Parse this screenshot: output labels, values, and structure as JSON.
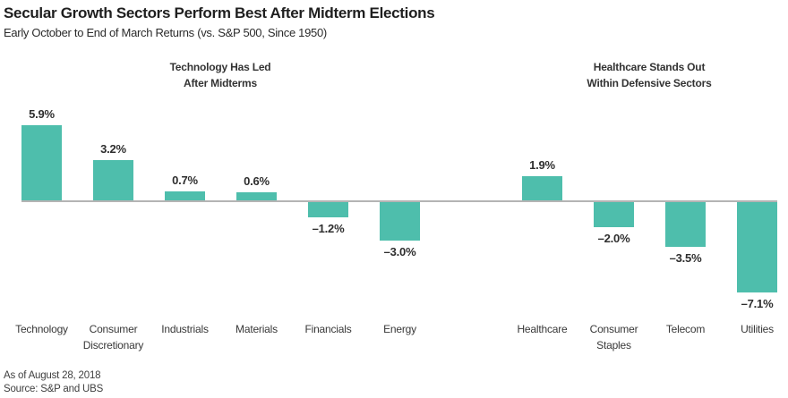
{
  "title": "Secular Growth Sectors Perform Best After Midterm Elections",
  "subtitle": "Early October to End of March Returns (vs. S&P 500, Since 1950)",
  "annotations": [
    {
      "lines": [
        "Technology Has Led",
        "After Midterms"
      ]
    },
    {
      "lines": [
        "Healthcare Stands Out",
        "Within Defensive Sectors"
      ]
    }
  ],
  "chart_data": {
    "type": "bar",
    "categories": [
      "Technology",
      "Consumer Discretionary",
      "Industrials",
      "Materials",
      "Financials",
      "Energy",
      "Healthcare",
      "Consumer Staples",
      "Telecom",
      "Utilities"
    ],
    "values": [
      5.9,
      3.2,
      0.7,
      0.6,
      -1.2,
      -3.0,
      1.9,
      -2.0,
      -3.5,
      -7.1
    ],
    "value_labels": [
      "5.9%",
      "3.2%",
      "0.7%",
      "0.6%",
      "–1.2%",
      "–3.0%",
      "1.9%",
      "–2.0%",
      "–3.5%",
      "–7.1%"
    ],
    "title": "Secular Growth Sectors Perform Best After Midterm Elections",
    "xlabel": "",
    "ylabel": "",
    "ylim": [
      -8,
      7
    ],
    "grid": false,
    "legend": false,
    "group_split_index": 6,
    "data_labels_shown": true
  },
  "footer": {
    "as_of": "As of August 28, 2018",
    "source": "Source: S&P and UBS"
  },
  "colors": {
    "bar": "#4EBEAC",
    "axis": "#B4B4B4",
    "title_text": "#1F1F1F",
    "body_text": "#333333"
  }
}
